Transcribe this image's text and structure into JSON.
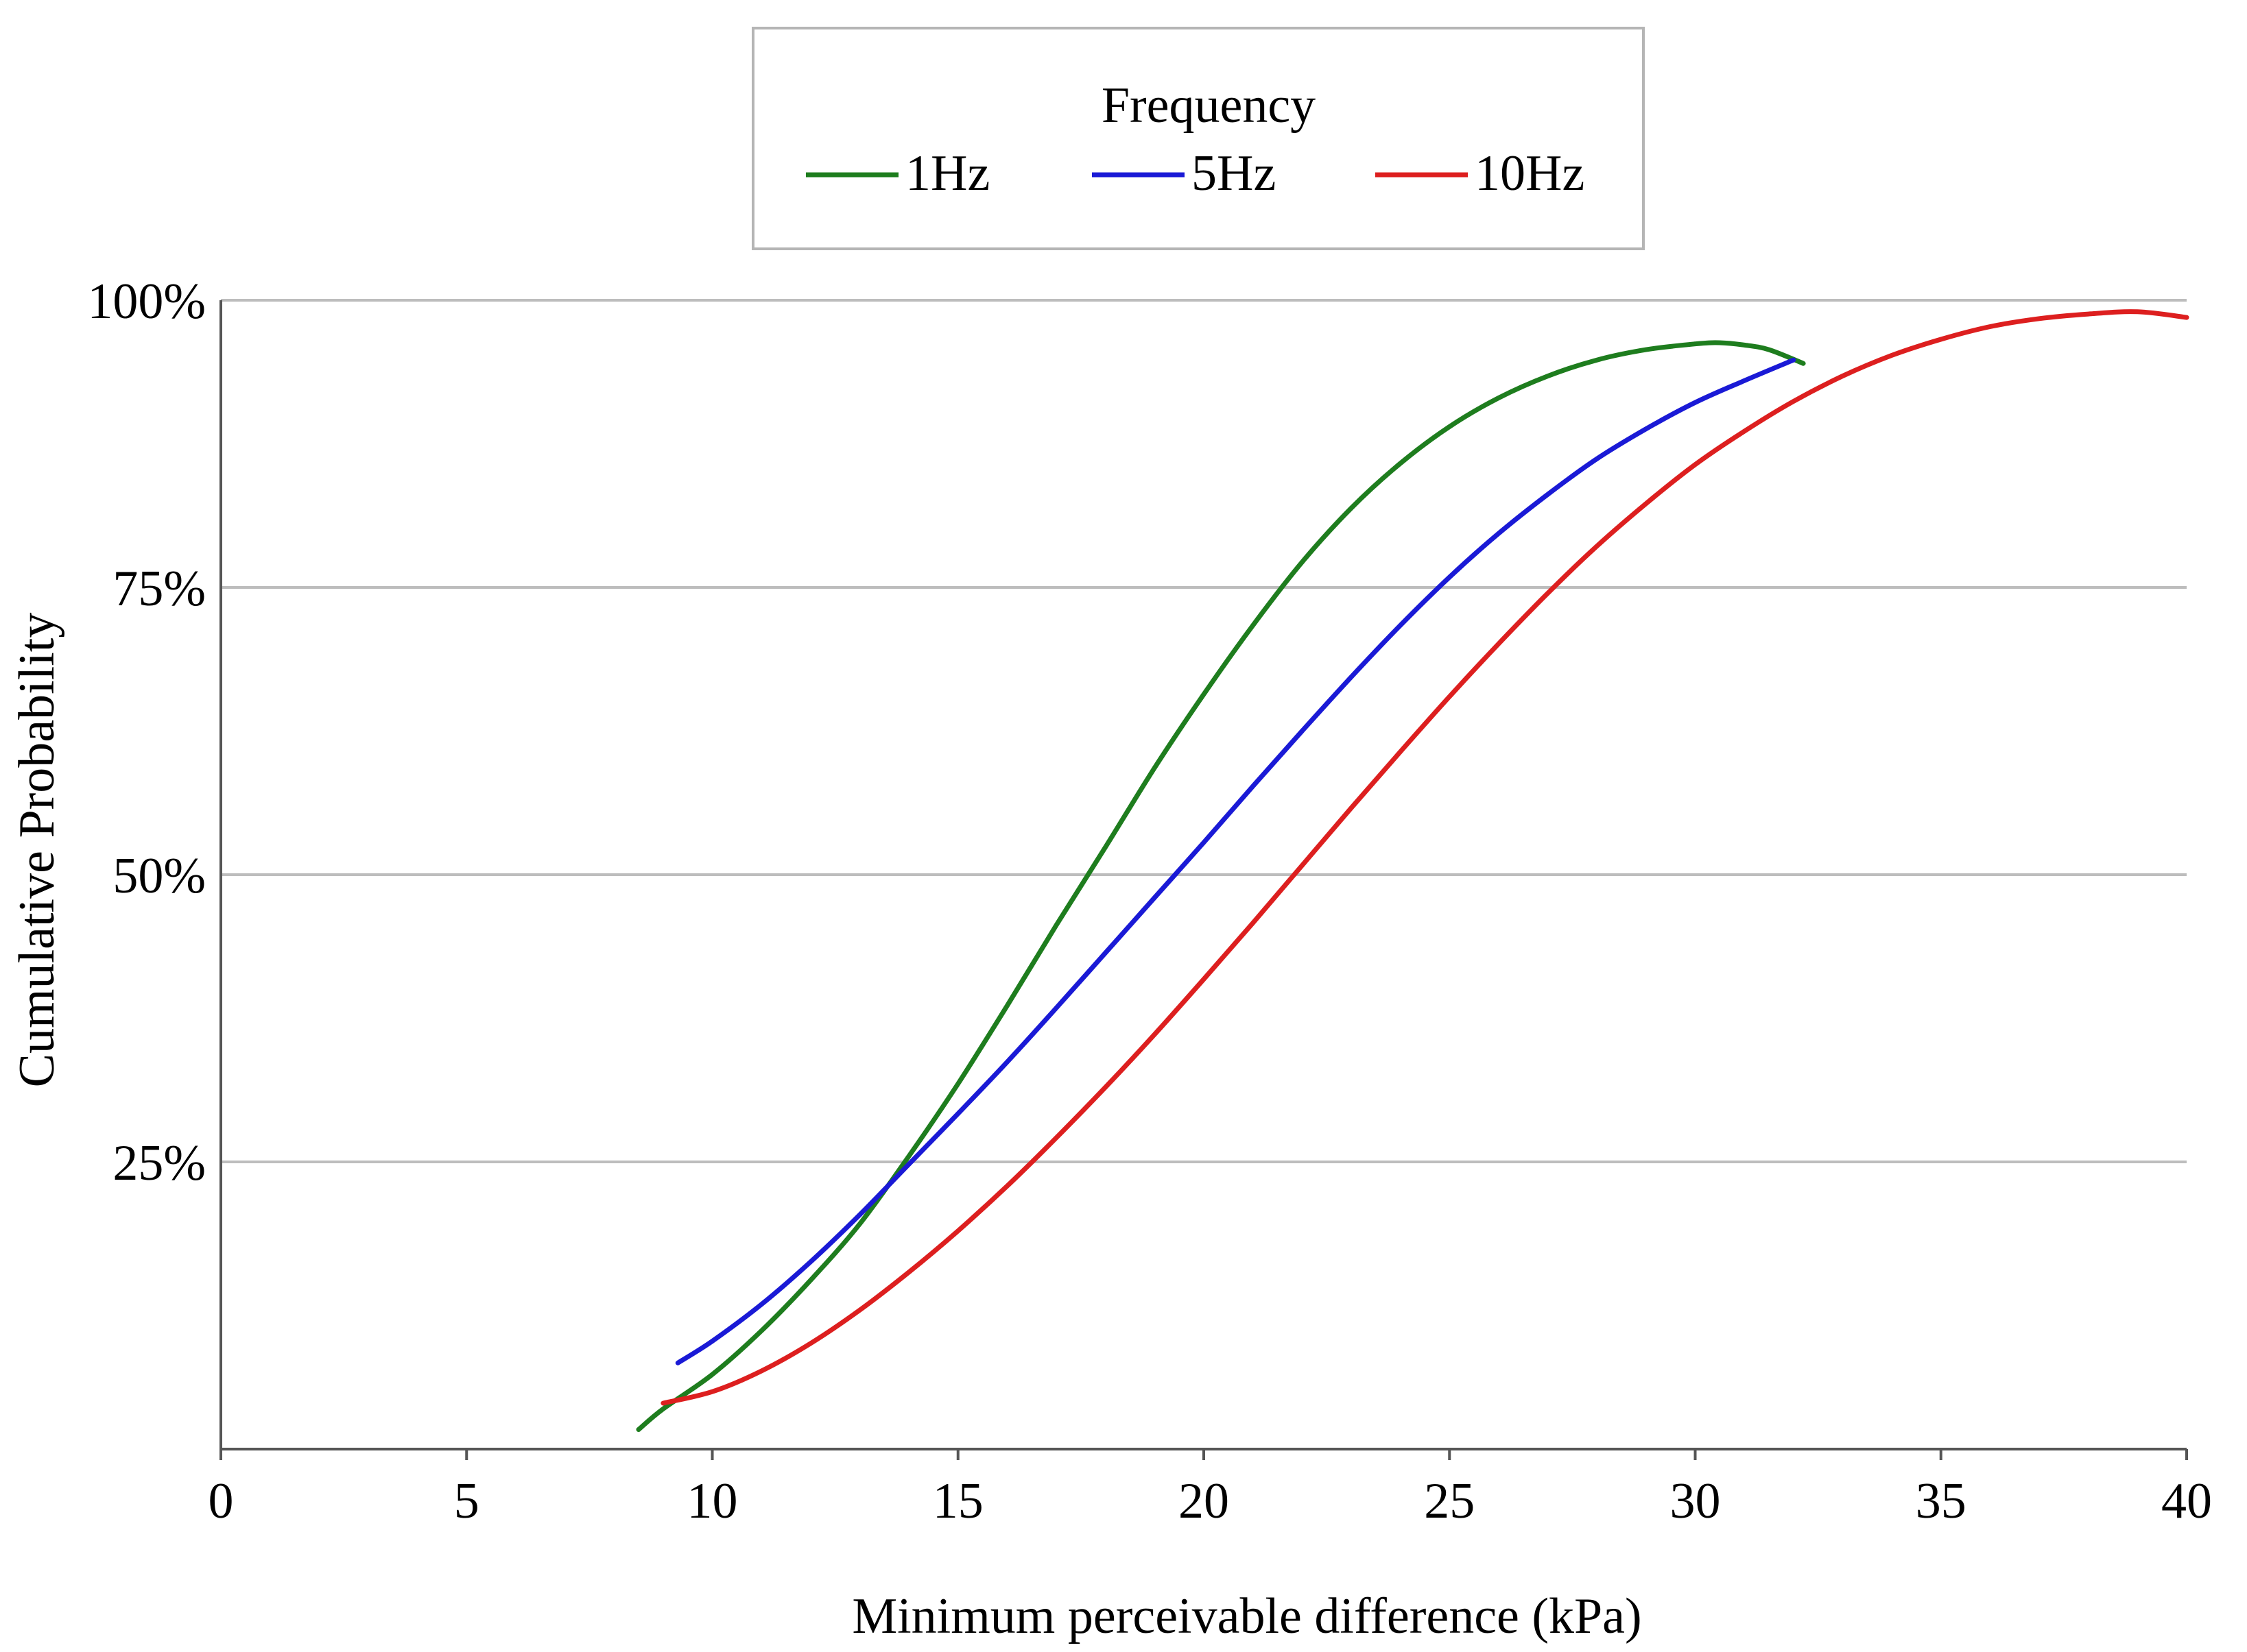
{
  "chart_data": {
    "type": "line",
    "title": "",
    "xlabel": "Minimum perceivable difference (kPa)",
    "ylabel": "Cumulative Probability",
    "xlim": [
      0,
      40
    ],
    "ylim": [
      0,
      1
    ],
    "xticks": [
      0,
      5,
      10,
      15,
      20,
      25,
      30,
      35,
      40
    ],
    "xtick_labels": [
      "0",
      "5",
      "10",
      "15",
      "20",
      "25",
      "30",
      "35",
      "40"
    ],
    "yticks": [
      0.25,
      0.5,
      0.75,
      1.0
    ],
    "ytick_labels": [
      "25%",
      "50%",
      "75%",
      "100%"
    ],
    "grid": "horizontal",
    "legend": {
      "title": "Frequency",
      "placement": "top-center"
    },
    "series": [
      {
        "name": "1Hz",
        "color": "#1e7d1e",
        "x": [
          8.5,
          9,
          10,
          11,
          12,
          13,
          14,
          15,
          16,
          17,
          18,
          19,
          20,
          21,
          22,
          23,
          24,
          25,
          26,
          27,
          28,
          29,
          30,
          30.5,
          31,
          31.5,
          32.2
        ],
        "y": [
          0.017,
          0.035,
          0.065,
          0.103,
          0.147,
          0.196,
          0.255,
          0.318,
          0.386,
          0.456,
          0.524,
          0.593,
          0.657,
          0.717,
          0.772,
          0.819,
          0.858,
          0.89,
          0.915,
          0.934,
          0.948,
          0.957,
          0.962,
          0.963,
          0.961,
          0.957,
          0.945
        ]
      },
      {
        "name": "5Hz",
        "color": "#1a1ad6",
        "x": [
          9.3,
          10,
          11,
          12,
          13,
          14,
          15,
          16,
          17,
          18,
          19,
          20,
          21,
          22,
          23,
          24,
          25,
          26,
          27,
          28,
          29,
          30,
          31,
          32
        ],
        "y": [
          0.075,
          0.094,
          0.126,
          0.163,
          0.204,
          0.248,
          0.292,
          0.337,
          0.384,
          0.432,
          0.48,
          0.528,
          0.577,
          0.625,
          0.672,
          0.717,
          0.759,
          0.797,
          0.831,
          0.862,
          0.888,
          0.911,
          0.93,
          0.948
        ]
      },
      {
        "name": "10Hz",
        "color": "#dd1f1f",
        "x": [
          9,
          10,
          11,
          12,
          13,
          14,
          15,
          16,
          17,
          18,
          19,
          20,
          21,
          22,
          23,
          24,
          25,
          26,
          27,
          28,
          29,
          30,
          31,
          32,
          33,
          34,
          35,
          36,
          37,
          38,
          39,
          40
        ],
        "y": [
          0.04,
          0.05,
          0.068,
          0.092,
          0.121,
          0.154,
          0.19,
          0.229,
          0.271,
          0.315,
          0.361,
          0.409,
          0.458,
          0.508,
          0.558,
          0.607,
          0.655,
          0.701,
          0.745,
          0.786,
          0.823,
          0.857,
          0.886,
          0.912,
          0.934,
          0.952,
          0.966,
          0.977,
          0.984,
          0.988,
          0.99,
          0.985
        ]
      }
    ]
  }
}
